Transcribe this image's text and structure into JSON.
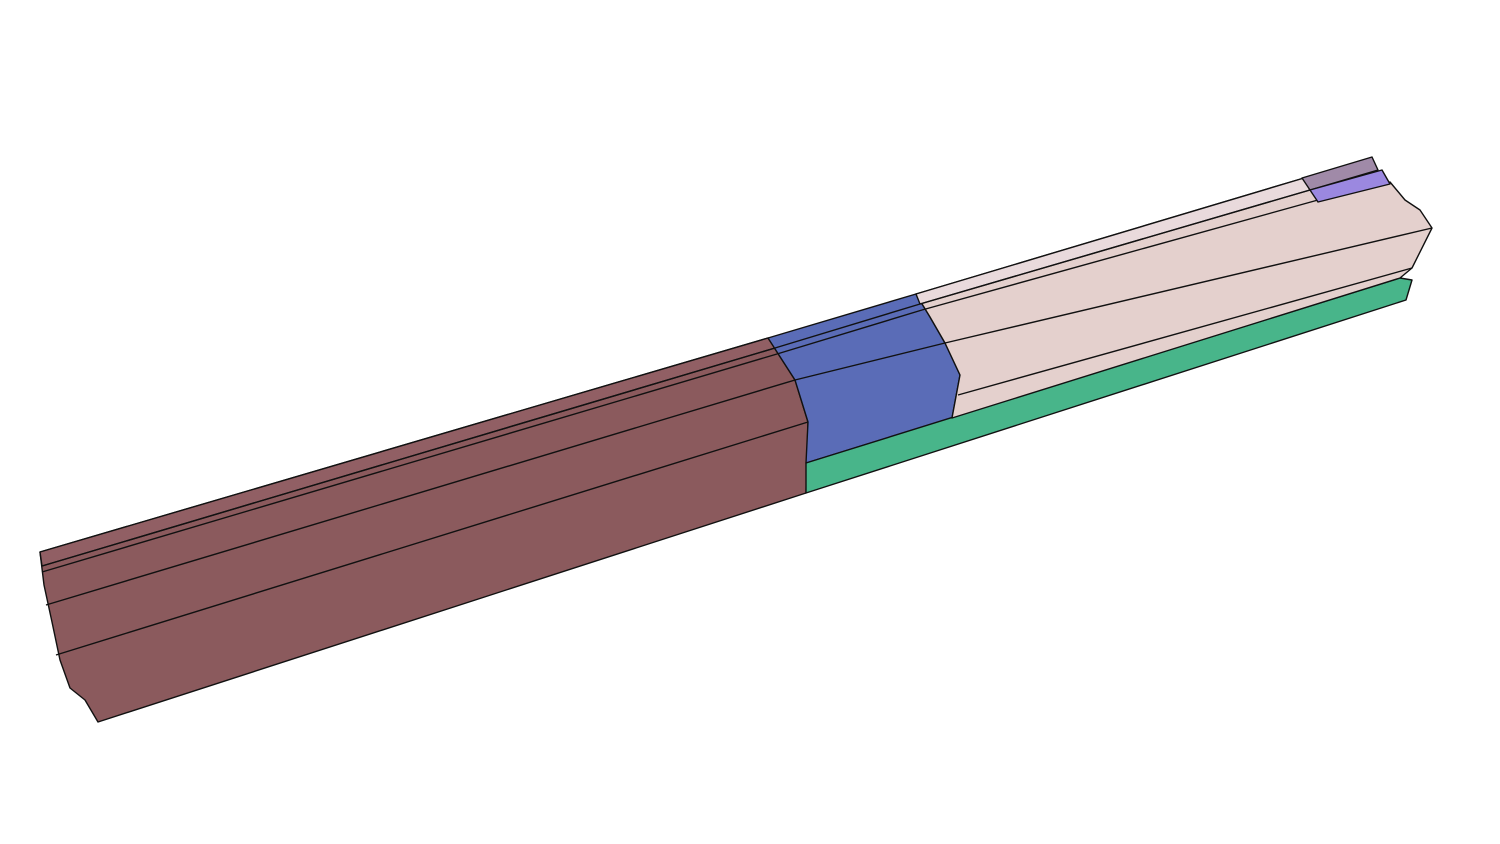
{
  "scene": {
    "background": "#ffffff",
    "outline_color": "#111111",
    "segments": [
      {
        "id": "brown",
        "color": "#8c5a5c",
        "top_color": "#94636a"
      },
      {
        "id": "blue",
        "color": "#5b6db8",
        "top_color": "#6070bd"
      },
      {
        "id": "pink",
        "color": "#e3cfcc",
        "top_color": "#e8d9da"
      },
      {
        "id": "green",
        "color": "#46b488"
      },
      {
        "id": "mauve-cap",
        "color": "#a08aa8"
      },
      {
        "id": "lavender-cap",
        "color": "#9b88e0"
      }
    ]
  }
}
